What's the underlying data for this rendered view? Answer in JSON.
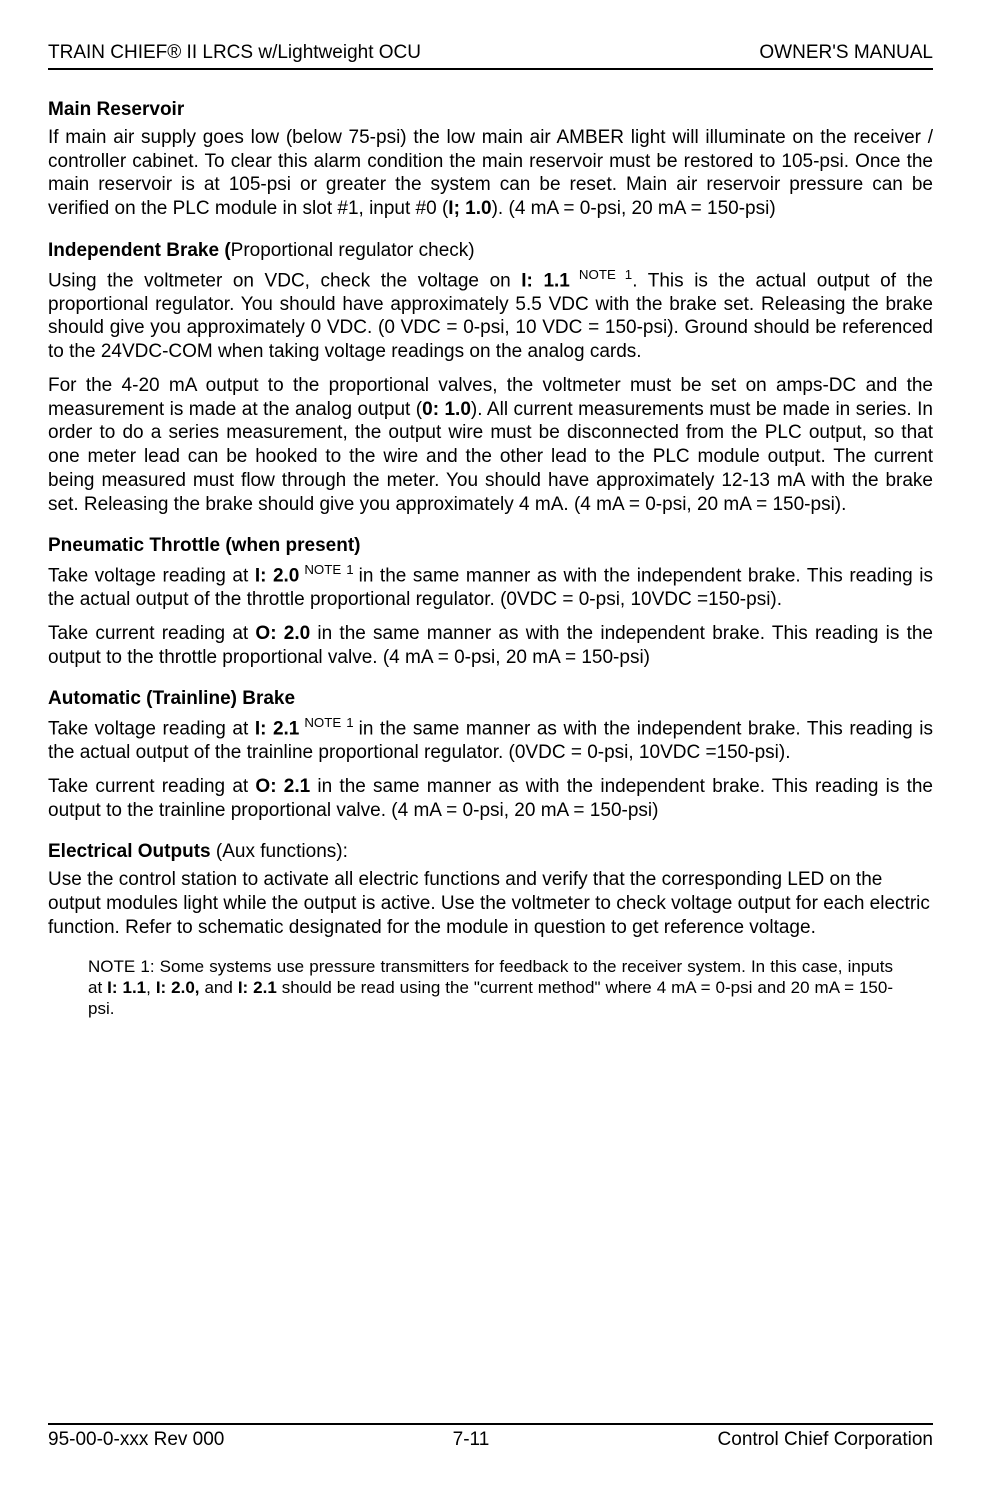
{
  "header": {
    "left": "TRAIN CHIEF® II LRCS w/Lightweight OCU",
    "right": "OWNER'S MANUAL"
  },
  "footer": {
    "left": "95-00-0-xxx Rev 000",
    "center": "7-11",
    "right": "Control Chief Corporation"
  },
  "colors": {
    "text": "#000000",
    "background": "#ffffff",
    "rule": "#000000"
  },
  "typography": {
    "body_font": "Arial",
    "body_size_pt": 14,
    "note_size_pt": 12,
    "line_height": 1.25
  },
  "sections": {
    "main_reservoir": {
      "heading": "Main Reservoir",
      "p1_a": "If main air supply goes low (below 75-psi) the low main air AMBER light will illuminate on the receiver / controller cabinet.  To clear this alarm condition the main reservoir must be restored to 105-psi.  Once the main reservoir is at 105-psi or greater the system can be reset.  Main air reservoir pressure can be verified on the PLC module in slot #1, input #0 (",
      "p1_bold": "I; 1.0",
      "p1_b": ").  (4 mA = 0-psi, 20 mA = 150-psi)"
    },
    "independent_brake": {
      "heading_bold": "Independent Brake (",
      "heading_rest": "Proportional regulator check)",
      "p1_a": "Using the voltmeter on VDC, check the voltage on ",
      "p1_bold": "I: 1.1",
      "p1_sup": " NOTE 1",
      "p1_b": ".  This is the actual output of the proportional regulator.  You should have approximately 5.5 VDC with the brake set.  Releasing the brake should give you approximately 0 VDC. (0 VDC = 0-psi, 10 VDC = 150-psi).  Ground should be referenced to the 24VDC-COM when taking voltage readings on the analog cards.",
      "p2_a": "For the 4-20 mA output to the proportional valves, the voltmeter must be set on amps-DC and the measurement is made at the analog output (",
      "p2_bold": "0: 1.0",
      "p2_b": ").  All current measurements must be made in series.  In order to do a series measurement, the output wire must be disconnected from the PLC output, so that one meter lead can be hooked to the wire and the other lead to the PLC module output.  The current being measured must flow through the meter.  You should have approximately 12-13 mA with the brake set.  Releasing the brake should give you approximately 4 mA. (4 mA = 0-psi, 20 mA = 150-psi)."
    },
    "pneumatic_throttle": {
      "heading": "Pneumatic Throttle (when present)",
      "p1_a": "Take voltage reading at ",
      "p1_bold": "I: 2.0",
      "p1_sup": " NOTE 1 ",
      "p1_b": "in the same manner as with the independent brake.  This reading is the actual output of the throttle proportional regulator. (0VDC = 0-psi, 10VDC =150-psi).",
      "p2_a": "Take current reading at ",
      "p2_bold": "O: 2.0",
      "p2_b": " in the same manner as with the independent brake.  This reading is the output to the throttle proportional valve. (4 mA = 0-psi, 20 mA = 150-psi)"
    },
    "automatic_brake": {
      "heading": "Automatic (Trainline) Brake",
      "p1_a": "Take voltage reading at ",
      "p1_bold": "I: 2.1",
      "p1_sup": " NOTE 1 ",
      "p1_b": "in the same manner as with the independent brake.  This reading is the actual output of the trainline proportional regulator. (0VDC = 0-psi, 10VDC =150-psi).",
      "p2_a": "Take current reading at ",
      "p2_bold": "O: 2.1",
      "p2_b": " in the same manner as with the independent brake.  This reading is the output to the trainline proportional valve. (4 mA = 0-psi, 20 mA = 150-psi)"
    },
    "electrical_outputs": {
      "heading_bold": "Electrical Outputs ",
      "heading_rest": "(Aux functions):",
      "p1": "Use the control station to activate all electric functions and verify that the corresponding LED on the output modules light while the output is active.  Use the voltmeter to check voltage output for each electric function.  Refer to schematic designated for the module in question to get reference voltage."
    },
    "note1": {
      "a": "NOTE 1:  Some systems use pressure transmitters for feedback to the receiver system.  In this case, inputs at ",
      "b1": "I: 1.1",
      "c1": ", ",
      "b2": "I: 2.0,",
      "c2": " and ",
      "b3": "I: 2.1",
      "d": " should be read using the \"current method\" where 4 mA = 0-psi and 20 mA = 150-psi."
    }
  }
}
